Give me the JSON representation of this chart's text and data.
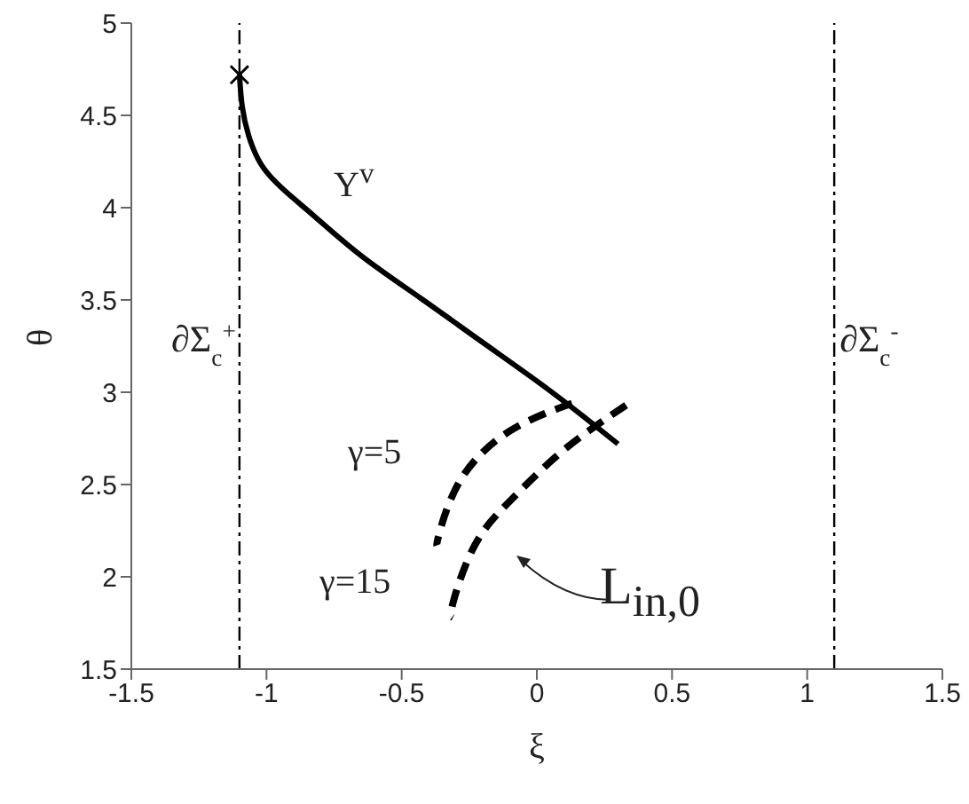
{
  "chart_data": {
    "type": "line",
    "xlabel": "ξ",
    "ylabel": "θ",
    "xlim": [
      -1.5,
      1.5
    ],
    "xticks": [
      -1.5,
      -1,
      -0.5,
      0,
      0.5,
      1,
      1.5
    ],
    "ylim": [
      1.5,
      5
    ],
    "yticks": [
      1.5,
      2,
      2.5,
      3,
      3.5,
      4,
      4.5,
      5
    ],
    "grid": false,
    "series": [
      {
        "type": "line",
        "color": "#000000",
        "line_style": "solid",
        "x": [
          -1.1,
          -1.09,
          -1.066,
          -1.03,
          -0.98,
          -0.9,
          -0.82,
          -0.65,
          -0.43,
          -0.21,
          0.01,
          0.18,
          0.3
        ],
        "values": [
          4.72,
          4.55,
          4.39,
          4.26,
          4.16,
          4.05,
          3.95,
          3.74,
          3.51,
          3.28,
          3.05,
          2.86,
          2.72
        ]
      },
      {
        "type": "line",
        "color": "#000000",
        "line_style": "dashed",
        "x": [
          0.33,
          0.22,
          0.07,
          -0.1,
          -0.23,
          -0.31,
          -0.31
        ],
        "values": [
          2.93,
          2.82,
          2.65,
          2.41,
          2.17,
          1.86,
          1.78
        ]
      },
      {
        "type": "line",
        "color": "#000000",
        "line_style": "dashed",
        "x": [
          0.13,
          -0.1,
          -0.28,
          -0.36,
          -0.37
        ],
        "values": [
          2.94,
          2.79,
          2.53,
          2.24,
          2.17
        ]
      },
      {
        "type": "scatter",
        "color": "#000000",
        "marker": "cross",
        "x": [
          -1.1
        ],
        "values": [
          4.72
        ]
      }
    ],
    "ref_lines": [
      {
        "axis": "x",
        "value": -1.1,
        "label": "∂Σ$_{c}$$^{+}$",
        "line_style": "dashdot",
        "color": "#000000"
      },
      {
        "axis": "x",
        "value": 1.1,
        "label": "∂Σ$_{c}$$^{-}$",
        "line_style": "dashdot",
        "color": "#000000"
      }
    ],
    "annotations": [
      "Υ$^{v}$",
      "γ=5",
      "γ=15",
      "L$_{in,0}$"
    ]
  }
}
